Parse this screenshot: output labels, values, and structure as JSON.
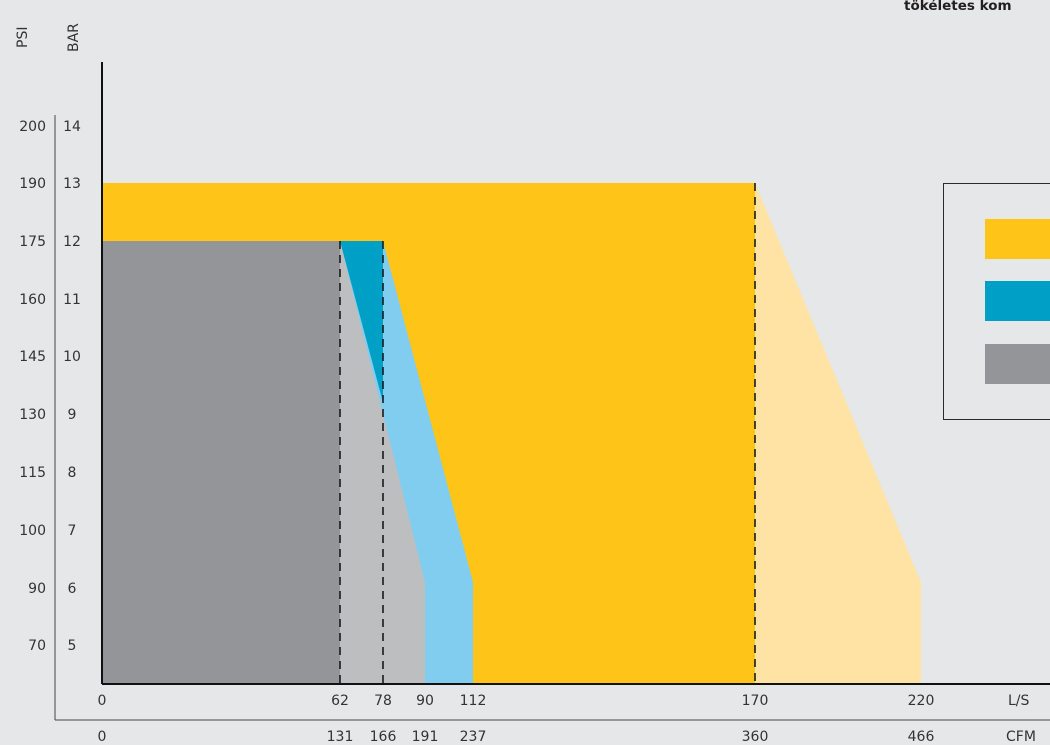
{
  "fragment_title": "tökéletes kom",
  "axes": {
    "psi_label": "PSI",
    "bar_label": "BAR",
    "ls_label": "L/S",
    "cfm_label": "CFM"
  },
  "colors": {
    "orange": "#fec418",
    "orange_light": "#fee3a5",
    "blue": "#00a0c6",
    "blue_light": "#80cdef",
    "gray": "#939598",
    "gray_light": "#bcbec0",
    "background": "#e6e7e8"
  },
  "chart_data": {
    "type": "area",
    "title": "",
    "y_axes": [
      {
        "label": "BAR",
        "ticks": [
          5,
          6,
          7,
          8,
          9,
          10,
          11,
          12,
          13,
          14
        ]
      },
      {
        "label": "PSI",
        "ticks": [
          70,
          90,
          100,
          115,
          130,
          145,
          160,
          175,
          190,
          200
        ]
      }
    ],
    "x_axes": [
      {
        "label": "L/S",
        "ticks": [
          0,
          62,
          78,
          90,
          112,
          170,
          220
        ]
      },
      {
        "label": "CFM",
        "ticks": [
          0,
          131,
          166,
          191,
          237,
          360,
          466
        ]
      }
    ],
    "series": [
      {
        "color": "orange",
        "max_pressure_bar": 13,
        "full_flow_ls": 170,
        "reduced_flow_ls": 220,
        "reduced_flow_pressure_bar": 6.1
      },
      {
        "color": "blue",
        "max_pressure_bar": 12,
        "full_flow_ls": 78,
        "reduced_flow_ls": 112,
        "reduced_flow_pressure_bar": 6.1,
        "full_region_end_bar": 9.2
      },
      {
        "color": "gray",
        "max_pressure_bar": 12,
        "full_flow_ls": 62,
        "reduced_flow_ls": 90,
        "reduced_flow_pressure_bar": 6.1
      }
    ],
    "legend": {
      "entries": [
        "orange",
        "blue",
        "gray"
      ],
      "placement": "right"
    }
  }
}
